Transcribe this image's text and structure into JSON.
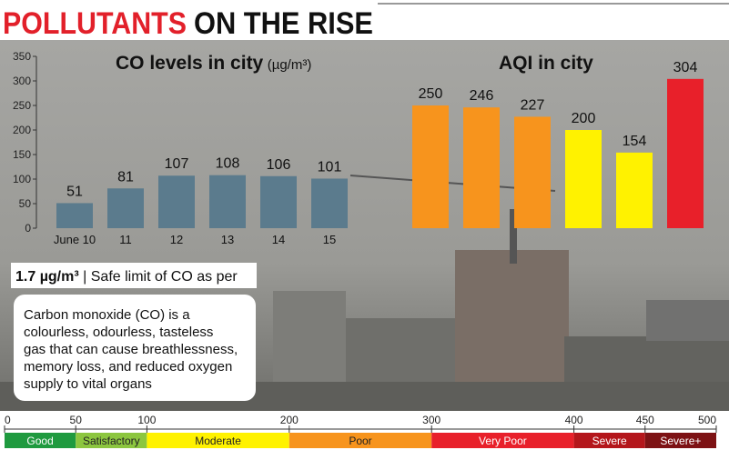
{
  "header": {
    "title_highlight": "POLLUTANTS",
    "title_rest": "ON THE RISE"
  },
  "chart_data": [
    {
      "type": "bar",
      "title": "CO levels in city",
      "unit": "(µg/m³)",
      "categories": [
        "June 10",
        "11",
        "12",
        "13",
        "14",
        "15"
      ],
      "values": [
        51,
        81,
        107,
        108,
        106,
        101
      ],
      "color": "#5b7b8d",
      "ylim": [
        0,
        350
      ],
      "yticks": [
        0,
        50,
        100,
        150,
        200,
        250,
        300,
        350
      ]
    },
    {
      "type": "bar",
      "title": "AQI in city",
      "categories": [
        null,
        null,
        null,
        null,
        null,
        null
      ],
      "values": [
        250,
        246,
        227,
        200,
        154,
        304
      ],
      "colors": [
        "#f7941d",
        "#f7941d",
        "#f7941d",
        "#fff200",
        "#fff200",
        "#e8202a"
      ],
      "ylim": [
        0,
        350
      ]
    }
  ],
  "safe_limit": {
    "value": "1.7 µg/m³",
    "text": "| Safe limit of CO as per"
  },
  "note": {
    "lines": [
      "Carbon monoxide (CO) is a",
      "colourless, odourless, tasteless",
      "gas that can cause breathlessness,",
      "memory loss, and reduced oxygen",
      "supply to vital organs"
    ]
  },
  "aqi_scale": {
    "xlim": [
      0,
      500
    ],
    "xticks": [
      0,
      50,
      100,
      200,
      300,
      400,
      450,
      500
    ],
    "bands": [
      {
        "label": "Good",
        "from": 0,
        "to": 50,
        "color": "#1f9a3f"
      },
      {
        "label": "Satisfactory",
        "from": 50,
        "to": 100,
        "color": "#8cc63f"
      },
      {
        "label": "Moderate",
        "from": 100,
        "to": 200,
        "color": "#fff200"
      },
      {
        "label": "Poor",
        "from": 200,
        "to": 300,
        "color": "#f7941d"
      },
      {
        "label": "Very Poor",
        "from": 300,
        "to": 400,
        "color": "#e8202a"
      },
      {
        "label": "Severe",
        "from": 400,
        "to": 450,
        "color": "#b4161b"
      },
      {
        "label": "Severe+",
        "from": 450,
        "to": 500,
        "color": "#7d1214"
      }
    ]
  }
}
